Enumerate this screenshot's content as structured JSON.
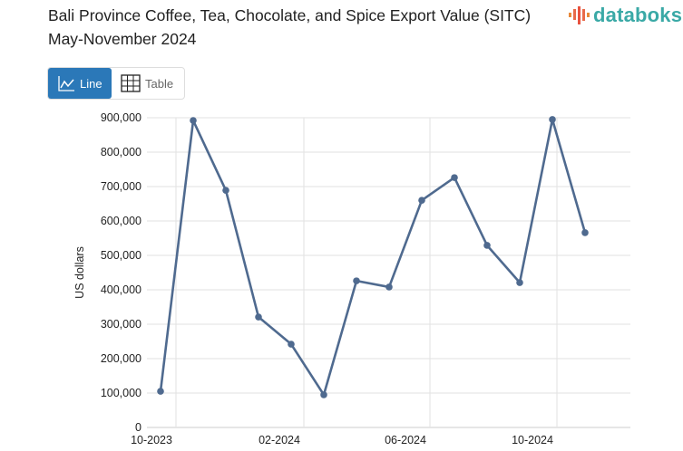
{
  "title": "Bali Province Coffee, Tea, Chocolate, and Spice Export Value (SITC) May-November 2024",
  "logo": {
    "text": "databoks",
    "color": "#3aa9a6"
  },
  "toggle": {
    "line_label": "Line",
    "table_label": "Table",
    "active": "Line",
    "active_color": "#2b78b8"
  },
  "chart_data": {
    "type": "line",
    "title": "",
    "xlabel": "",
    "ylabel": "US dollars",
    "x": [
      "10-2023",
      "11-2023",
      "12-2023",
      "01-2024",
      "02-2024",
      "03-2024",
      "04-2024",
      "05-2024",
      "06-2024",
      "07-2024",
      "08-2024",
      "09-2024",
      "10-2024",
      "11-2024"
    ],
    "series": [
      {
        "values": [
          105000,
          892000,
          689000,
          321000,
          242000,
          95000,
          426000,
          408000,
          660000,
          726000,
          529000,
          421000,
          895000,
          566000
        ],
        "color": "#4f6a8f"
      }
    ],
    "ylim": [
      0,
      900000
    ],
    "yticks": [
      "0",
      "100,000",
      "200,000",
      "300,000",
      "400,000",
      "500,000",
      "600,000",
      "700,000",
      "800,000",
      "900,000"
    ],
    "xticks": [
      "10-2023",
      "02-2024",
      "06-2024",
      "10-2024"
    ],
    "grid": true,
    "legend": "none"
  }
}
